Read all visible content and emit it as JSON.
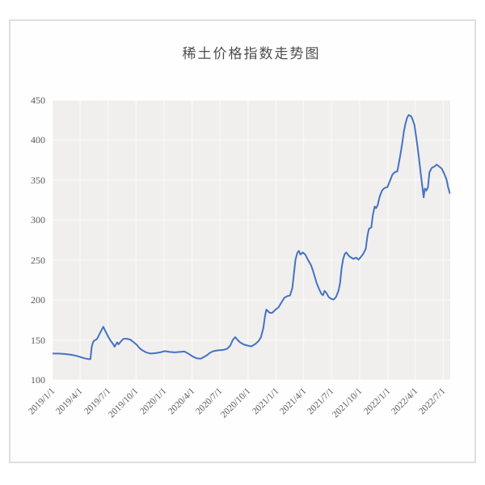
{
  "page": {
    "background": "#ffffff",
    "frame_border_color": "#dedede"
  },
  "chart_data": {
    "type": "line",
    "title": "稀土价格指数走势图",
    "series_name": "稀土价格指数",
    "xlabel": "",
    "ylabel": "",
    "line_color": "#4472c4",
    "plot_bg": "#f0efed",
    "grid_color": "rgba(255,255,255,0.6)",
    "tick_color": "#595959",
    "grid": true,
    "legend_position": "none",
    "ylim": [
      100,
      450
    ],
    "y_ticks": [
      100,
      150,
      200,
      250,
      300,
      350,
      400,
      450
    ],
    "x_tick_labels": [
      "2019/1/1",
      "2019/4/1",
      "2019/7/1",
      "2019/10/1",
      "2020/1/1",
      "2020/4/1",
      "2020/7/1",
      "2020/10/1",
      "2021/1/1",
      "2021/4/1",
      "2021/7/1",
      "2021/10/1",
      "2022/1/1",
      "2022/4/1",
      "2022/7/1"
    ],
    "x_range": [
      "2019/1/1",
      "2022/7/24"
    ],
    "points": [
      [
        "2019/1/1",
        133
      ],
      [
        "2019/1/19",
        133
      ],
      [
        "2019/2/9",
        132.5
      ],
      [
        "2019/3/3",
        131.5
      ],
      [
        "2019/3/21",
        130
      ],
      [
        "2019/4/3",
        128.5
      ],
      [
        "2019/4/16",
        127
      ],
      [
        "2019/4/30",
        126
      ],
      [
        "2019/5/5",
        126
      ],
      [
        "2019/5/9",
        141
      ],
      [
        "2019/5/13",
        147
      ],
      [
        "2019/5/18",
        149.5
      ],
      [
        "2019/5/26",
        151
      ],
      [
        "2019/6/3",
        157
      ],
      [
        "2019/6/11",
        163
      ],
      [
        "2019/6/16",
        166.5
      ],
      [
        "2019/6/24",
        160
      ],
      [
        "2019/7/2",
        154
      ],
      [
        "2019/7/10",
        149
      ],
      [
        "2019/7/18",
        145
      ],
      [
        "2019/7/23",
        141.5
      ],
      [
        "2019/7/31",
        147
      ],
      [
        "2019/8/5",
        144.5
      ],
      [
        "2019/8/13",
        148.5
      ],
      [
        "2019/8/21",
        151.5
      ],
      [
        "2019/9/1",
        151.5
      ],
      [
        "2019/9/12",
        150.5
      ],
      [
        "2019/9/22",
        147.5
      ],
      [
        "2019/10/3",
        144
      ],
      [
        "2019/10/13",
        139.5
      ],
      [
        "2019/10/24",
        136.5
      ],
      [
        "2019/11/3",
        134.5
      ],
      [
        "2019/11/17",
        133
      ],
      [
        "2019/12/3",
        133.5
      ],
      [
        "2019/12/19",
        134.5
      ],
      [
        "2020/1/3",
        136
      ],
      [
        "2020/1/19",
        135
      ],
      [
        "2020/2/4",
        134.5
      ],
      [
        "2020/2/20",
        135
      ],
      [
        "2020/3/7",
        135.5
      ],
      [
        "2020/3/20",
        133
      ],
      [
        "2020/4/2",
        129.5
      ],
      [
        "2020/4/16",
        127
      ],
      [
        "2020/4/29",
        126.5
      ],
      [
        "2020/5/9",
        128.5
      ],
      [
        "2020/5/20",
        131
      ],
      [
        "2020/5/30",
        134
      ],
      [
        "2020/6/10",
        136
      ],
      [
        "2020/6/26",
        137
      ],
      [
        "2020/7/12",
        137.5
      ],
      [
        "2020/7/25",
        139
      ],
      [
        "2020/8/4",
        143
      ],
      [
        "2020/8/12",
        150
      ],
      [
        "2020/8/20",
        153.5
      ],
      [
        "2020/8/28",
        150
      ],
      [
        "2020/9/5",
        147
      ],
      [
        "2020/9/16",
        144.5
      ],
      [
        "2020/9/29",
        143
      ],
      [
        "2020/10/12",
        142
      ],
      [
        "2020/10/25",
        145
      ],
      [
        "2020/11/4",
        148.5
      ],
      [
        "2020/11/12",
        153
      ],
      [
        "2020/11/20",
        165
      ],
      [
        "2020/11/25",
        179
      ],
      [
        "2020/11/30",
        188
      ],
      [
        "2020/12/11",
        184
      ],
      [
        "2020/12/19",
        184
      ],
      [
        "2020/12/30",
        188
      ],
      [
        "2021/1/9",
        191
      ],
      [
        "2021/1/20",
        198
      ],
      [
        "2021/1/28",
        203
      ],
      [
        "2021/2/7",
        205
      ],
      [
        "2021/2/15",
        205.5
      ],
      [
        "2021/2/23",
        215
      ],
      [
        "2021/2/28",
        233
      ],
      [
        "2021/3/5",
        250
      ],
      [
        "2021/3/11",
        259
      ],
      [
        "2021/3/16",
        261.5
      ],
      [
        "2021/3/21",
        257
      ],
      [
        "2021/3/29",
        259.5
      ],
      [
        "2021/4/6",
        257
      ],
      [
        "2021/4/14",
        251
      ],
      [
        "2021/4/25",
        243.5
      ],
      [
        "2021/5/2",
        236
      ],
      [
        "2021/5/13",
        221.5
      ],
      [
        "2021/5/21",
        214
      ],
      [
        "2021/5/29",
        207.5
      ],
      [
        "2021/6/3",
        206
      ],
      [
        "2021/6/8",
        211.5
      ],
      [
        "2021/6/14",
        209
      ],
      [
        "2021/6/22",
        203.5
      ],
      [
        "2021/6/30",
        201.5
      ],
      [
        "2021/7/8",
        200.5
      ],
      [
        "2021/7/16",
        204
      ],
      [
        "2021/7/24",
        212
      ],
      [
        "2021/7/29",
        222
      ],
      [
        "2021/8/3",
        240
      ],
      [
        "2021/8/8",
        251
      ],
      [
        "2021/8/13",
        257.5
      ],
      [
        "2021/8/18",
        259.5
      ],
      [
        "2021/8/26",
        255.5
      ],
      [
        "2021/9/3",
        253
      ],
      [
        "2021/9/11",
        251.5
      ],
      [
        "2021/9/19",
        253
      ],
      [
        "2021/9/27",
        250.5
      ],
      [
        "2021/10/5",
        254
      ],
      [
        "2021/10/13",
        258
      ],
      [
        "2021/10/21",
        264
      ],
      [
        "2021/10/26",
        279
      ],
      [
        "2021/10/31",
        289
      ],
      [
        "2021/11/8",
        291
      ],
      [
        "2021/11/13",
        306
      ],
      [
        "2021/11/19",
        317
      ],
      [
        "2021/11/24",
        315
      ],
      [
        "2021/11/29",
        319
      ],
      [
        "2021/12/5",
        329
      ],
      [
        "2021/12/13",
        337
      ],
      [
        "2021/12/21",
        340
      ],
      [
        "2021/12/31",
        341.5
      ],
      [
        "2022/1/8",
        349
      ],
      [
        "2022/1/16",
        357
      ],
      [
        "2022/1/24",
        360
      ],
      [
        "2022/2/1",
        361
      ],
      [
        "2022/2/6",
        371
      ],
      [
        "2022/2/12",
        384
      ],
      [
        "2022/2/17",
        396
      ],
      [
        "2022/2/22",
        410
      ],
      [
        "2022/2/28",
        421
      ],
      [
        "2022/3/5",
        428
      ],
      [
        "2022/3/10",
        431.5
      ],
      [
        "2022/3/18",
        430
      ],
      [
        "2022/3/23",
        426
      ],
      [
        "2022/3/29",
        419
      ],
      [
        "2022/4/3",
        406
      ],
      [
        "2022/4/8",
        392
      ],
      [
        "2022/4/13",
        377
      ],
      [
        "2022/4/18",
        360
      ],
      [
        "2022/4/24",
        341
      ],
      [
        "2022/4/28",
        328.5
      ],
      [
        "2022/5/2",
        339.5
      ],
      [
        "2022/5/7",
        337
      ],
      [
        "2022/5/12",
        341
      ],
      [
        "2022/5/17",
        360
      ],
      [
        "2022/5/25",
        365.5
      ],
      [
        "2022/6/2",
        367
      ],
      [
        "2022/6/10",
        369.5
      ],
      [
        "2022/6/18",
        367
      ],
      [
        "2022/6/26",
        364.5
      ],
      [
        "2022/7/4",
        358.5
      ],
      [
        "2022/7/12",
        350.5
      ],
      [
        "2022/7/17",
        341
      ],
      [
        "2022/7/23",
        333.5
      ]
    ]
  }
}
